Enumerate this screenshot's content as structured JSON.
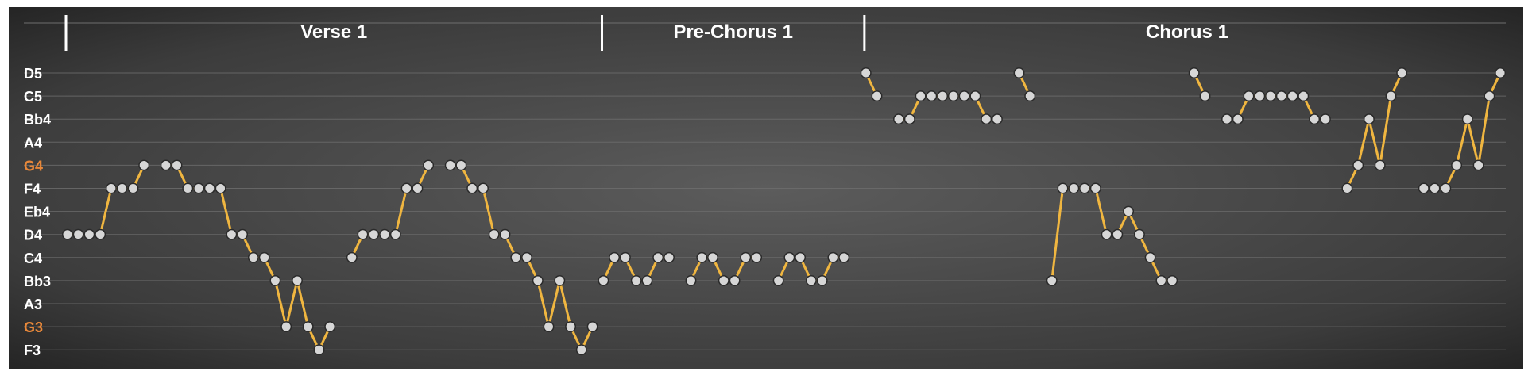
{
  "chart_data": {
    "type": "line",
    "title": "",
    "xlabel": "",
    "ylabel": "",
    "pitch_lanes": [
      "D5",
      "C5",
      "Bb4",
      "A4",
      "G4",
      "F4",
      "Eb4",
      "D4",
      "C4",
      "Bb3",
      "A3",
      "G3",
      "F3"
    ],
    "accent_lanes": [
      "G4",
      "G3"
    ],
    "sections": [
      {
        "label": "Verse 1",
        "start_beat": 0
      },
      {
        "label": "Pre-Chorus 1",
        "start_beat": 49
      },
      {
        "label": "Chorus 1",
        "start_beat": 73
      }
    ],
    "total_beats": 132,
    "phrases": [
      {
        "notes": [
          [
            "D4",
            0.5
          ],
          [
            "D4",
            1.5
          ],
          [
            "D4",
            2.5
          ],
          [
            "D4",
            3.5
          ],
          [
            "F4",
            4.5
          ],
          [
            "F4",
            5.5
          ],
          [
            "F4",
            6.5
          ],
          [
            "G4",
            7.5
          ]
        ]
      },
      {
        "notes": [
          [
            "G4",
            9.5
          ],
          [
            "G4",
            10.5
          ],
          [
            "F4",
            11.5
          ],
          [
            "F4",
            12.5
          ],
          [
            "F4",
            13.5
          ],
          [
            "F4",
            14.5
          ],
          [
            "D4",
            15.5
          ],
          [
            "D4",
            16.5
          ],
          [
            "C4",
            17.5
          ],
          [
            "C4",
            18.5
          ],
          [
            "Bb3",
            19.5
          ],
          [
            "G3",
            20.5
          ],
          [
            "Bb3",
            21.5
          ],
          [
            "G3",
            22.5
          ],
          [
            "F3",
            23.5
          ],
          [
            "G3",
            24.5
          ]
        ]
      },
      {
        "notes": [
          [
            "C4",
            26.5
          ],
          [
            "D4",
            27.5
          ],
          [
            "D4",
            28.5
          ],
          [
            "D4",
            29.5
          ],
          [
            "D4",
            30.5
          ],
          [
            "F4",
            31.5
          ],
          [
            "F4",
            32.5
          ],
          [
            "G4",
            33.5
          ]
        ]
      },
      {
        "notes": [
          [
            "G4",
            35.5
          ],
          [
            "G4",
            36.5
          ],
          [
            "F4",
            37.5
          ],
          [
            "F4",
            38.5
          ],
          [
            "D4",
            39.5
          ],
          [
            "D4",
            40.5
          ],
          [
            "C4",
            41.5
          ],
          [
            "C4",
            42.5
          ],
          [
            "Bb3",
            43.5
          ],
          [
            "G3",
            44.5
          ],
          [
            "Bb3",
            45.5
          ],
          [
            "G3",
            46.5
          ],
          [
            "F3",
            47.5
          ],
          [
            "G3",
            48.5
          ]
        ]
      },
      {
        "notes": [
          [
            "Bb3",
            49.5
          ],
          [
            "C4",
            50.5
          ],
          [
            "C4",
            51.5
          ],
          [
            "Bb3",
            52.5
          ],
          [
            "Bb3",
            53.5
          ],
          [
            "C4",
            54.5
          ],
          [
            "C4",
            55.5
          ]
        ]
      },
      {
        "notes": [
          [
            "Bb3",
            57.5
          ],
          [
            "C4",
            58.5
          ],
          [
            "C4",
            59.5
          ],
          [
            "Bb3",
            60.5
          ],
          [
            "Bb3",
            61.5
          ],
          [
            "C4",
            62.5
          ],
          [
            "C4",
            63.5
          ]
        ]
      },
      {
        "notes": [
          [
            "Bb3",
            65.5
          ],
          [
            "C4",
            66.5
          ],
          [
            "C4",
            67.5
          ],
          [
            "Bb3",
            68.5
          ],
          [
            "Bb3",
            69.5
          ],
          [
            "C4",
            70.5
          ],
          [
            "C4",
            71.5
          ]
        ]
      },
      {
        "notes": [
          [
            "D5",
            73.5
          ],
          [
            "C5",
            74.5
          ]
        ]
      },
      {
        "notes": [
          [
            "Bb4",
            76.5
          ],
          [
            "Bb4",
            77.5
          ],
          [
            "C5",
            78.5
          ],
          [
            "C5",
            79.5
          ],
          [
            "C5",
            80.5
          ],
          [
            "C5",
            81.5
          ],
          [
            "C5",
            82.5
          ],
          [
            "C5",
            83.5
          ],
          [
            "Bb4",
            84.5
          ],
          [
            "Bb4",
            85.5
          ]
        ]
      },
      {
        "notes": [
          [
            "D5",
            87.5
          ],
          [
            "C5",
            88.5
          ]
        ]
      },
      {
        "notes": [
          [
            "Bb3",
            90.5
          ],
          [
            "F4",
            91.5
          ],
          [
            "F4",
            92.5
          ],
          [
            "F4",
            93.5
          ],
          [
            "F4",
            94.5
          ],
          [
            "D4",
            95.5
          ],
          [
            "D4",
            96.5
          ],
          [
            "Eb4",
            97.5
          ],
          [
            "D4",
            98.5
          ],
          [
            "C4",
            99.5
          ],
          [
            "Bb3",
            100.5
          ],
          [
            "Bb3",
            101.5
          ]
        ]
      },
      {
        "notes": [
          [
            "D5",
            103.5
          ],
          [
            "C5",
            104.5
          ]
        ]
      },
      {
        "notes": [
          [
            "Bb4",
            106.5
          ],
          [
            "Bb4",
            107.5
          ],
          [
            "C5",
            108.5
          ],
          [
            "C5",
            109.5
          ],
          [
            "C5",
            110.5
          ],
          [
            "C5",
            111.5
          ],
          [
            "C5",
            112.5
          ],
          [
            "C5",
            113.5
          ],
          [
            "Bb4",
            114.5
          ],
          [
            "Bb4",
            115.5
          ]
        ]
      },
      {
        "notes": [
          [
            "F4",
            117.5
          ],
          [
            "G4",
            118.5
          ],
          [
            "Bb4",
            119.5
          ],
          [
            "G4",
            120.5
          ],
          [
            "C5",
            121.5
          ],
          [
            "D5",
            122.5
          ]
        ]
      },
      {
        "notes": [
          [
            "F4",
            124.5
          ],
          [
            "F4",
            125.5
          ],
          [
            "F4",
            126.5
          ],
          [
            "G4",
            127.5
          ],
          [
            "Bb4",
            128.5
          ],
          [
            "G4",
            129.5
          ],
          [
            "C5",
            130.5
          ],
          [
            "D5",
            131.5
          ]
        ]
      }
    ],
    "grid": true,
    "colors": {
      "background_center": "#5b5b5b",
      "background_edge": "#232323",
      "line": "#f0b640",
      "note_fill": "#d6d6d6",
      "note_stroke": "#2a2a2a",
      "gridline": "#6e6e6e",
      "label": "#ffffff",
      "accent_label": "#e8883a"
    }
  }
}
